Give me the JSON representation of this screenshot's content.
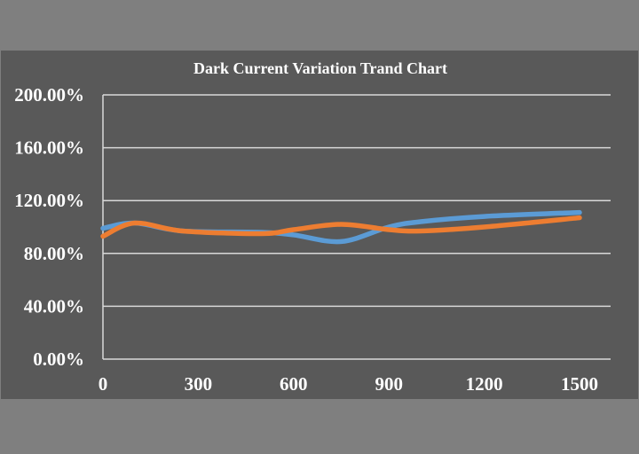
{
  "chart_data": {
    "type": "line",
    "title": "Dark Current Variation Trand Chart",
    "xlabel": "",
    "ylabel": "",
    "x_ticks": [
      "0",
      "300",
      "600",
      "900",
      "1200",
      "1500"
    ],
    "x_tick_values": [
      0,
      300,
      600,
      900,
      1200,
      1500
    ],
    "y_ticks": [
      "0.00%",
      "40.00%",
      "80.00%",
      "120.00%",
      "160.00%",
      "200.00%"
    ],
    "y_tick_values": [
      0,
      40,
      80,
      120,
      160,
      200
    ],
    "xlim": [
      0,
      1600
    ],
    "ylim": [
      0,
      200
    ],
    "grid": "horizontal",
    "smooth": true,
    "series": [
      {
        "color": "#5b9bd5",
        "x": [
          0,
          100,
          250,
          500,
          600,
          750,
          900,
          1000,
          1200,
          1500
        ],
        "y": [
          99,
          103,
          97,
          96,
          94,
          89,
          100,
          104,
          108,
          111
        ]
      },
      {
        "color": "#ed7d31",
        "x": [
          0,
          100,
          250,
          500,
          600,
          750,
          900,
          1000,
          1200,
          1500
        ],
        "y": [
          93,
          103,
          97,
          95,
          98,
          102,
          98,
          97,
          100,
          107
        ]
      }
    ]
  },
  "colors": {
    "page_background": "#7f7f7f",
    "chart_background": "#595959",
    "text": "#ffffff",
    "grid": "#d9d9d9"
  }
}
